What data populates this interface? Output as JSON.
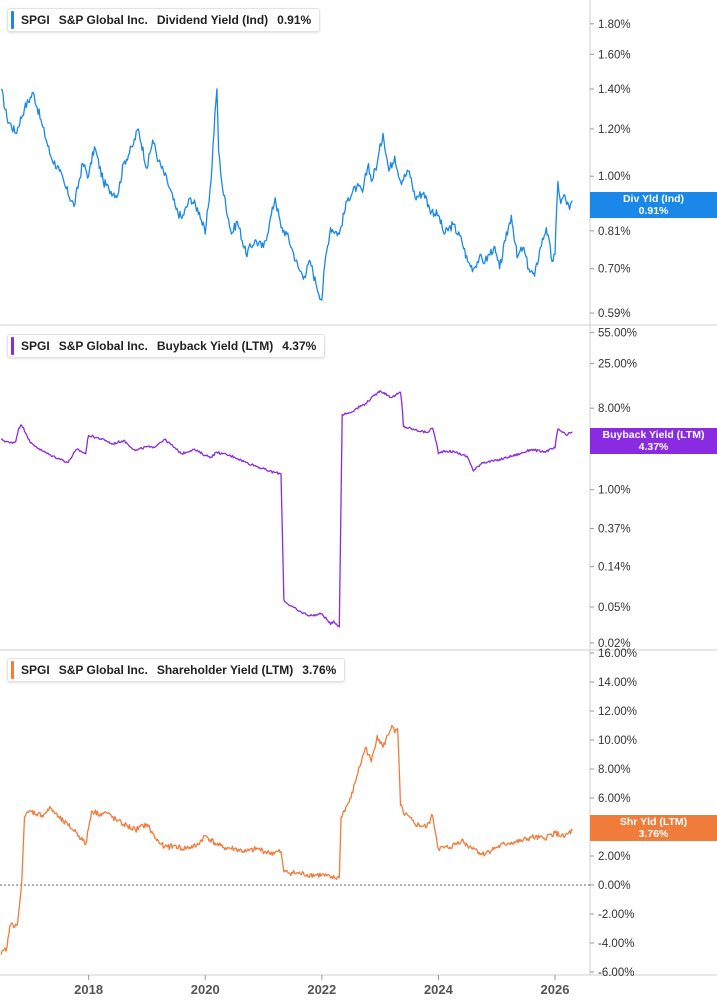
{
  "colors": {
    "dividend": "#1a88e8",
    "buyback": "#8a2be2",
    "shareholder": "#f07c3c",
    "grid": "#cfcfcf"
  },
  "x_axis": {
    "ticks": [
      "2018",
      "2020",
      "2022",
      "2024",
      "2026"
    ],
    "range": [
      2016.48,
      2026.6
    ]
  },
  "panels": [
    {
      "ticker": "SPGI",
      "company": "S&P Global Inc.",
      "metric": "Dividend Yield (Ind)",
      "value": "0.91%",
      "badge_label": "Div Yld (Ind)",
      "badge_value": "0.91%"
    },
    {
      "ticker": "SPGI",
      "company": "S&P Global Inc.",
      "metric": "Buyback Yield (LTM)",
      "value": "4.37%",
      "badge_label": "Buyback Yield (LTM)",
      "badge_value": "4.37%"
    },
    {
      "ticker": "SPGI",
      "company": "S&P Global Inc.",
      "metric": "Shareholder Yield (LTM)",
      "value": "3.76%",
      "badge_label": "Shr Yld (LTM)",
      "badge_value": "3.76%"
    }
  ],
  "chart_data": [
    {
      "type": "line",
      "title": "SPGI S&P Global Inc. Dividend Yield (Ind) 0.91%",
      "scale": "log",
      "y_ticks": [
        "1.80%",
        "1.60%",
        "1.40%",
        "1.20%",
        "1.00%",
        "0.91%",
        "0.81%",
        "0.70%",
        "0.59%"
      ],
      "ylim": [
        0.57,
        1.95
      ],
      "series": [
        {
          "name": "Dividend Yield (Ind)",
          "x": [
            2016.5,
            2016.6,
            2016.75,
            2016.9,
            2017.05,
            2017.2,
            2017.35,
            2017.5,
            2017.6,
            2017.75,
            2017.9,
            2018.0,
            2018.1,
            2018.25,
            2018.35,
            2018.5,
            2018.6,
            2018.75,
            2018.85,
            2019.0,
            2019.1,
            2019.2,
            2019.35,
            2019.5,
            2019.6,
            2019.75,
            2019.9,
            2020.0,
            2020.1,
            2020.2,
            2020.23,
            2020.3,
            2020.45,
            2020.55,
            2020.7,
            2020.85,
            2021.0,
            2021.1,
            2021.2,
            2021.3,
            2021.4,
            2021.5,
            2021.6,
            2021.7,
            2021.8,
            2021.9,
            2022.0,
            2022.05,
            2022.15,
            2022.3,
            2022.45,
            2022.6,
            2022.7,
            2022.8,
            2022.85,
            2022.95,
            2023.05,
            2023.15,
            2023.25,
            2023.35,
            2023.5,
            2023.6,
            2023.75,
            2023.85,
            2024.0,
            2024.1,
            2024.25,
            2024.4,
            2024.5,
            2024.6,
            2024.7,
            2024.8,
            2024.95,
            2025.05,
            2025.15,
            2025.25,
            2025.35,
            2025.45,
            2025.55,
            2025.65,
            2025.75,
            2025.85,
            2025.95,
            2026.0,
            2026.05,
            2026.1,
            2026.15,
            2026.25,
            2026.3
          ],
          "values": [
            1.4,
            1.25,
            1.18,
            1.3,
            1.38,
            1.22,
            1.08,
            1.02,
            0.96,
            0.89,
            1.05,
            1.0,
            1.12,
            0.98,
            0.95,
            0.93,
            1.05,
            1.12,
            1.2,
            1.03,
            1.15,
            1.06,
            0.98,
            0.88,
            0.85,
            0.92,
            0.87,
            0.8,
            0.98,
            1.4,
            1.1,
            0.95,
            0.8,
            0.84,
            0.74,
            0.78,
            0.76,
            0.83,
            0.92,
            0.82,
            0.8,
            0.75,
            0.7,
            0.68,
            0.72,
            0.66,
            0.62,
            0.71,
            0.82,
            0.8,
            0.92,
            0.96,
            0.94,
            1.05,
            0.98,
            1.05,
            1.18,
            1.02,
            1.08,
            0.98,
            1.02,
            0.92,
            0.94,
            0.88,
            0.86,
            0.8,
            0.83,
            0.78,
            0.72,
            0.7,
            0.73,
            0.72,
            0.76,
            0.7,
            0.78,
            0.86,
            0.73,
            0.76,
            0.7,
            0.68,
            0.76,
            0.82,
            0.72,
            0.74,
            0.98,
            0.9,
            0.93,
            0.88,
            0.91
          ]
        }
      ]
    },
    {
      "type": "line",
      "title": "SPGI S&P Global Inc. Buyback Yield (LTM) 4.37%",
      "scale": "log",
      "y_ticks": [
        "55.00%",
        "25.00%",
        "8.00%",
        "3.00%",
        "1.00%",
        "0.37%",
        "0.14%",
        "0.05%",
        "0.02%"
      ],
      "ylim": [
        0.018,
        62
      ],
      "series": [
        {
          "name": "Buyback Yield (LTM)",
          "x": [
            2016.5,
            2016.65,
            2016.75,
            2016.8,
            2016.85,
            2017.0,
            2017.1,
            2017.2,
            2017.35,
            2017.5,
            2017.65,
            2017.8,
            2017.95,
            2018.0,
            2018.3,
            2018.4,
            2018.6,
            2018.8,
            2019.0,
            2019.1,
            2019.3,
            2019.5,
            2019.6,
            2019.8,
            2020.0,
            2020.1,
            2020.2,
            2020.3,
            2020.5,
            2020.7,
            2020.8,
            2021.1,
            2021.3,
            2021.35,
            2021.4,
            2021.6,
            2021.8,
            2022.0,
            2022.15,
            2022.2,
            2022.3,
            2022.35,
            2022.5,
            2022.6,
            2022.75,
            2022.9,
            2023.0,
            2023.2,
            2023.35,
            2023.4,
            2023.6,
            2023.8,
            2023.9,
            2024.0,
            2024.1,
            2024.3,
            2024.5,
            2024.6,
            2024.75,
            2025.0,
            2025.2,
            2025.4,
            2025.6,
            2025.8,
            2026.0,
            2026.05,
            2026.2,
            2026.3
          ],
          "values": [
            3.6,
            3.3,
            3.4,
            4.8,
            5.2,
            3.3,
            3.0,
            2.7,
            2.4,
            2.2,
            2.0,
            2.8,
            2.5,
            4.0,
            3.5,
            3.2,
            3.5,
            2.7,
            3.0,
            2.9,
            3.6,
            2.8,
            2.5,
            2.8,
            2.4,
            2.3,
            2.6,
            2.5,
            2.3,
            2.0,
            1.9,
            1.6,
            1.5,
            0.06,
            0.055,
            0.045,
            0.04,
            0.042,
            0.032,
            0.035,
            0.03,
            6.8,
            7.2,
            8.0,
            9.0,
            11.0,
            12.5,
            10.5,
            12.0,
            5.0,
            4.6,
            4.3,
            4.8,
            2.5,
            2.7,
            2.6,
            2.3,
            1.6,
            2.0,
            2.1,
            2.3,
            2.5,
            2.8,
            2.6,
            2.9,
            4.7,
            4.0,
            4.37
          ]
        }
      ]
    },
    {
      "type": "line",
      "title": "SPGI S&P Global Inc. Shareholder Yield (LTM) 3.76%",
      "scale": "linear",
      "y_ticks": [
        "16.00%",
        "14.00%",
        "12.00%",
        "10.00%",
        "8.00%",
        "6.00%",
        "4.00%",
        "2.00%",
        "0.00%",
        "-2.00%",
        "-4.00%",
        "-6.00%"
      ],
      "ylim": [
        -6.0,
        16.0
      ],
      "zero_line": true,
      "series": [
        {
          "name": "Shareholder Yield (LTM)",
          "x": [
            2016.5,
            2016.6,
            2016.65,
            2016.75,
            2016.78,
            2016.85,
            2016.9,
            2017.0,
            2017.2,
            2017.35,
            2017.5,
            2017.65,
            2017.8,
            2017.95,
            2018.05,
            2018.2,
            2018.3,
            2018.5,
            2018.6,
            2018.8,
            2019.0,
            2019.15,
            2019.3,
            2019.5,
            2019.6,
            2019.85,
            2020.0,
            2020.2,
            2020.3,
            2020.5,
            2020.7,
            2020.9,
            2021.1,
            2021.3,
            2021.35,
            2021.6,
            2021.8,
            2022.0,
            2022.15,
            2022.3,
            2022.33,
            2022.5,
            2022.6,
            2022.75,
            2022.85,
            2022.95,
            2023.05,
            2023.2,
            2023.25,
            2023.3,
            2023.35,
            2023.4,
            2023.6,
            2023.8,
            2023.9,
            2024.0,
            2024.2,
            2024.4,
            2024.5,
            2024.6,
            2024.75,
            2025.0,
            2025.2,
            2025.4,
            2025.6,
            2025.8,
            2026.0,
            2026.15,
            2026.3
          ],
          "values": [
            -4.8,
            -4.3,
            -2.8,
            -2.7,
            -2.7,
            0.0,
            4.7,
            5.1,
            4.8,
            5.3,
            4.6,
            4.1,
            3.6,
            2.8,
            5.1,
            4.9,
            5.0,
            4.4,
            4.2,
            3.8,
            4.2,
            3.2,
            2.6,
            2.7,
            2.5,
            2.7,
            3.4,
            2.8,
            2.6,
            2.5,
            2.3,
            2.5,
            2.2,
            2.3,
            0.9,
            0.8,
            0.7,
            0.7,
            0.5,
            0.5,
            4.7,
            6.0,
            7.5,
            9.5,
            8.5,
            10.3,
            9.5,
            11.0,
            10.5,
            10.8,
            5.5,
            5.0,
            4.2,
            4.0,
            4.8,
            2.5,
            2.6,
            3.1,
            2.7,
            2.6,
            2.1,
            2.6,
            2.9,
            3.0,
            3.3,
            3.2,
            3.6,
            3.3,
            3.76
          ]
        }
      ]
    }
  ]
}
